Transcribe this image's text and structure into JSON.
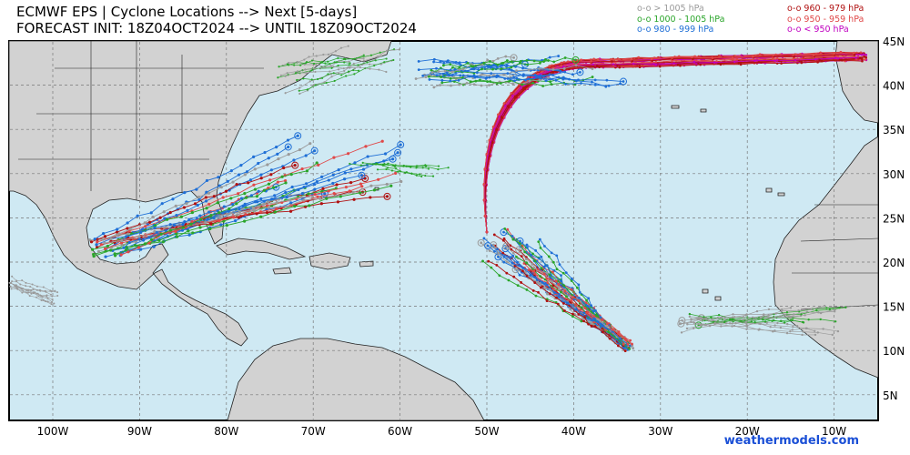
{
  "header": {
    "title_line1": "ECMWF EPS | Cyclone Locations --> Next [5-days]",
    "title_line2": "FORECAST INIT: 18Z04OCT2024 --> UNTIL 18Z09OCT2024"
  },
  "legend": {
    "items": [
      {
        "label": "o-o > 1005 hPa",
        "color": "#9a9a9a"
      },
      {
        "label": "o-o 1000 - 1005 hPa",
        "color": "#2aa52a"
      },
      {
        "label": "o-o 980 - 999 hPa",
        "color": "#1f6fd6"
      },
      {
        "label": "o-o 960 - 979 hPa",
        "color": "#b01010"
      },
      {
        "label": "o-o 950 - 959 hPa",
        "color": "#e04848"
      },
      {
        "label": "o-o < 950 hPa",
        "color": "#c000c0"
      }
    ]
  },
  "map": {
    "region": "North Atlantic basin",
    "ocean_color": "#cfe9f3",
    "land_color": "#d2d2d2",
    "lon_labels": [
      "100W",
      "90W",
      "80W",
      "70W",
      "60W",
      "50W",
      "40W",
      "30W",
      "20W",
      "10W"
    ],
    "lat_labels": [
      "45N",
      "40N",
      "35N",
      "30N",
      "25N",
      "20N",
      "15N",
      "10N",
      "5N"
    ]
  },
  "footer": {
    "credit": "weathermodels.com"
  },
  "colors": {
    "gray": "#9a9a9a",
    "green": "#2aa52a",
    "blue": "#1f6fd6",
    "darkred": "#b01010",
    "red": "#e04848",
    "magenta": "#c000c0"
  }
}
